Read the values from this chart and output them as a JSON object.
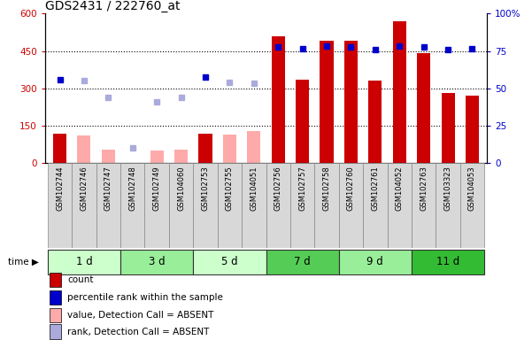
{
  "title": "GDS2431 / 222760_at",
  "samples": [
    "GSM102744",
    "GSM102746",
    "GSM102747",
    "GSM102748",
    "GSM102749",
    "GSM104060",
    "GSM102753",
    "GSM102755",
    "GSM104051",
    "GSM102756",
    "GSM102757",
    "GSM102758",
    "GSM102760",
    "GSM102761",
    "GSM104052",
    "GSM102763",
    "GSM103323",
    "GSM104053"
  ],
  "time_groups": [
    {
      "label": "1 d",
      "start": 0,
      "end": 3,
      "color": "#ccffcc"
    },
    {
      "label": "3 d",
      "start": 3,
      "end": 6,
      "color": "#99ee99"
    },
    {
      "label": "5 d",
      "start": 6,
      "end": 9,
      "color": "#ccffcc"
    },
    {
      "label": "7 d",
      "start": 9,
      "end": 12,
      "color": "#55cc55"
    },
    {
      "label": "9 d",
      "start": 12,
      "end": 15,
      "color": "#99ee99"
    },
    {
      "label": "11 d",
      "start": 15,
      "end": 18,
      "color": "#33bb33"
    }
  ],
  "count_values": [
    120,
    null,
    null,
    -5,
    null,
    null,
    120,
    null,
    null,
    510,
    335,
    490,
    490,
    330,
    570,
    440,
    280,
    270
  ],
  "count_absent": [
    null,
    110,
    55,
    null,
    50,
    55,
    null,
    115,
    130,
    null,
    null,
    null,
    null,
    null,
    null,
    null,
    null,
    null
  ],
  "rank_present": [
    335,
    null,
    null,
    null,
    null,
    null,
    345,
    null,
    null,
    465,
    460,
    470,
    465,
    455,
    470,
    465,
    455,
    460
  ],
  "rank_absent": [
    null,
    330,
    265,
    60,
    245,
    265,
    null,
    325,
    320,
    null,
    null,
    null,
    null,
    null,
    null,
    null,
    null,
    null
  ],
  "ylim_left": [
    0,
    600
  ],
  "ylim_right": [
    0,
    100
  ],
  "yticks_left": [
    0,
    150,
    300,
    450,
    600
  ],
  "yticks_right": [
    0,
    25,
    50,
    75,
    100
  ],
  "bar_width": 0.55,
  "count_color": "#cc0000",
  "count_absent_color": "#ffaaaa",
  "rank_present_color": "#0000cc",
  "rank_absent_color": "#aaaadd",
  "left_label_color": "#cc0000",
  "right_label_color": "#0000cc",
  "legend_items": [
    {
      "color": "#cc0000",
      "label": "count"
    },
    {
      "color": "#0000cc",
      "label": "percentile rank within the sample"
    },
    {
      "color": "#ffaaaa",
      "label": "value, Detection Call = ABSENT"
    },
    {
      "color": "#aaaadd",
      "label": "rank, Detection Call = ABSENT"
    }
  ]
}
